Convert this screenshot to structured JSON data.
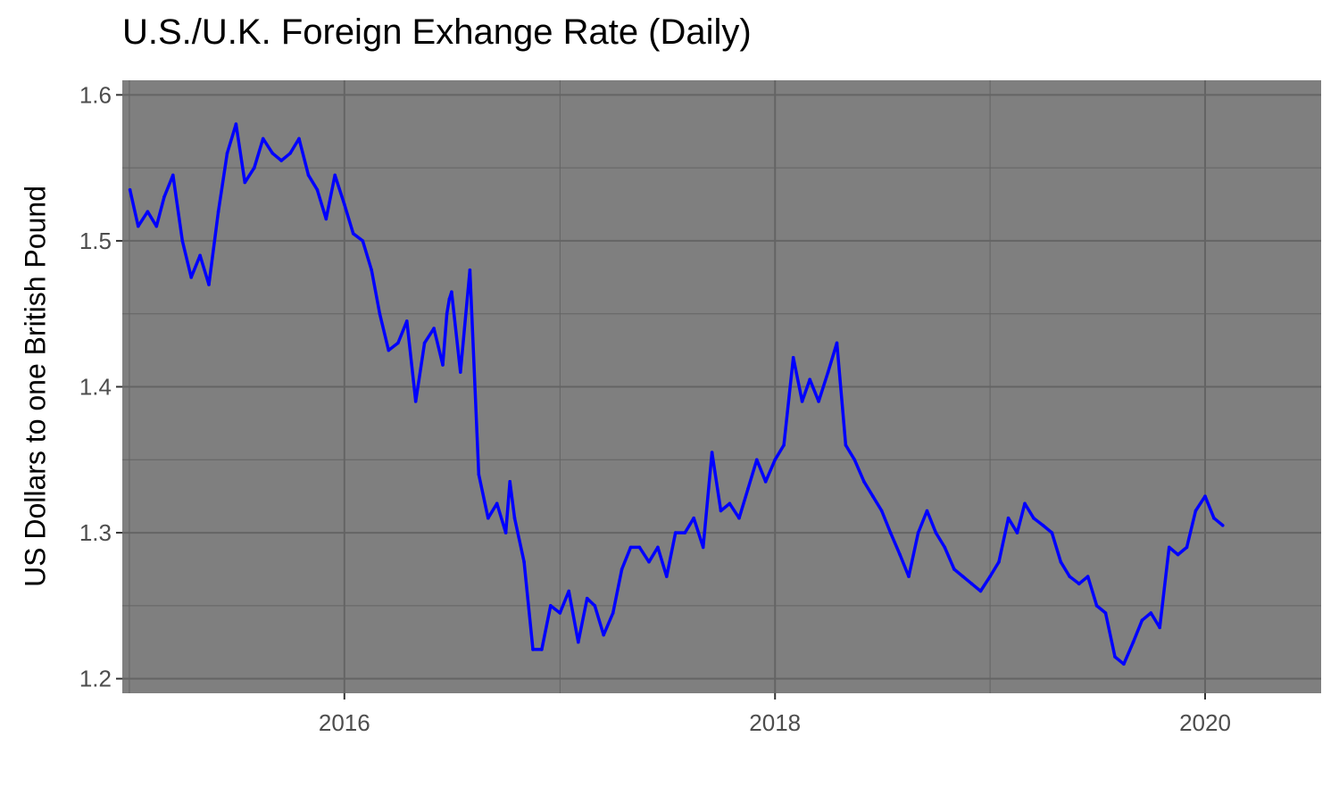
{
  "chart_data": {
    "type": "line",
    "title": "U.S./U.K. Foreign Exhange Rate (Daily)",
    "xlabel": "",
    "ylabel": "US Dollars to one British Pound",
    "xlim": [
      "2014-12-20",
      "2020-07-16"
    ],
    "ylim": [
      1.19,
      1.61
    ],
    "x_ticks": [
      "2016",
      "2018",
      "2020"
    ],
    "x_tick_dates": [
      "2016-01-01",
      "2018-01-01",
      "2020-01-01"
    ],
    "y_ticks": [
      1.2,
      1.3,
      1.4,
      1.5,
      1.6
    ],
    "y_tick_labels": [
      "1.2",
      "1.3",
      "1.4",
      "1.5",
      "1.6"
    ],
    "grid": true,
    "panel_color": "#7f7f7f",
    "grid_color": "#646464",
    "line_color": "#0000ff",
    "series": [
      {
        "x": [
          "2015-01-02",
          "2015-01-16",
          "2015-02-01",
          "2015-02-16",
          "2015-03-01",
          "2015-03-16",
          "2015-04-01",
          "2015-04-16",
          "2015-05-01",
          "2015-05-16",
          "2015-06-01",
          "2015-06-16",
          "2015-07-01",
          "2015-07-16",
          "2015-08-01",
          "2015-08-16",
          "2015-09-01",
          "2015-09-16",
          "2015-10-01",
          "2015-10-16",
          "2015-11-01",
          "2015-11-16",
          "2015-12-01",
          "2015-12-16",
          "2016-01-01",
          "2016-01-16",
          "2016-02-01",
          "2016-02-16",
          "2016-03-01",
          "2016-03-16",
          "2016-04-01",
          "2016-04-16",
          "2016-05-01",
          "2016-05-16",
          "2016-06-01",
          "2016-06-16",
          "2016-06-23",
          "2016-06-27",
          "2016-07-01",
          "2016-07-16",
          "2016-08-01",
          "2016-08-16",
          "2016-09-01",
          "2016-09-16",
          "2016-10-01",
          "2016-10-08",
          "2016-10-16",
          "2016-11-01",
          "2016-11-16",
          "2016-12-01",
          "2016-12-16",
          "2017-01-01",
          "2017-01-16",
          "2017-02-01",
          "2017-02-16",
          "2017-03-01",
          "2017-03-16",
          "2017-04-01",
          "2017-04-16",
          "2017-05-01",
          "2017-05-16",
          "2017-06-01",
          "2017-06-16",
          "2017-07-01",
          "2017-07-16",
          "2017-08-01",
          "2017-08-16",
          "2017-09-01",
          "2017-09-16",
          "2017-10-01",
          "2017-10-16",
          "2017-11-01",
          "2017-11-16",
          "2017-12-01",
          "2017-12-16",
          "2018-01-01",
          "2018-01-16",
          "2018-02-01",
          "2018-02-16",
          "2018-03-01",
          "2018-03-16",
          "2018-04-01",
          "2018-04-16",
          "2018-05-01",
          "2018-05-16",
          "2018-06-01",
          "2018-06-16",
          "2018-07-01",
          "2018-07-16",
          "2018-08-01",
          "2018-08-16",
          "2018-09-01",
          "2018-09-16",
          "2018-10-01",
          "2018-10-16",
          "2018-11-01",
          "2018-11-16",
          "2018-12-01",
          "2018-12-16",
          "2019-01-01",
          "2019-01-16",
          "2019-02-01",
          "2019-02-16",
          "2019-03-01",
          "2019-03-16",
          "2019-04-01",
          "2019-04-16",
          "2019-05-01",
          "2019-05-16",
          "2019-06-01",
          "2019-06-16",
          "2019-07-01",
          "2019-07-16",
          "2019-08-01",
          "2019-08-16",
          "2019-09-01",
          "2019-09-16",
          "2019-10-01",
          "2019-10-16",
          "2019-11-01",
          "2019-11-16",
          "2019-12-01",
          "2019-12-16",
          "2020-01-01",
          "2020-01-16",
          "2020-01-31"
        ],
        "y": [
          1.535,
          1.51,
          1.52,
          1.51,
          1.53,
          1.545,
          1.5,
          1.475,
          1.49,
          1.47,
          1.52,
          1.56,
          1.58,
          1.54,
          1.55,
          1.57,
          1.56,
          1.555,
          1.56,
          1.57,
          1.545,
          1.535,
          1.515,
          1.545,
          1.525,
          1.505,
          1.5,
          1.48,
          1.45,
          1.425,
          1.43,
          1.445,
          1.39,
          1.43,
          1.44,
          1.415,
          1.45,
          1.46,
          1.465,
          1.41,
          1.48,
          1.34,
          1.31,
          1.32,
          1.3,
          1.335,
          1.31,
          1.28,
          1.22,
          1.22,
          1.25,
          1.245,
          1.26,
          1.225,
          1.255,
          1.25,
          1.23,
          1.245,
          1.275,
          1.29,
          1.29,
          1.28,
          1.29,
          1.27,
          1.3,
          1.3,
          1.31,
          1.29,
          1.355,
          1.315,
          1.32,
          1.31,
          1.33,
          1.35,
          1.335,
          1.35,
          1.36,
          1.42,
          1.39,
          1.405,
          1.39,
          1.41,
          1.43,
          1.36,
          1.35,
          1.335,
          1.325,
          1.315,
          1.3,
          1.285,
          1.27,
          1.3,
          1.315,
          1.3,
          1.29,
          1.275,
          1.27,
          1.265,
          1.26,
          1.27,
          1.28,
          1.31,
          1.3,
          1.32,
          1.31,
          1.305,
          1.3,
          1.28,
          1.27,
          1.265,
          1.27,
          1.25,
          1.245,
          1.215,
          1.21,
          1.225,
          1.24,
          1.245,
          1.235,
          1.29,
          1.285,
          1.29,
          1.315,
          1.325,
          1.31,
          1.305
        ]
      }
    ]
  }
}
